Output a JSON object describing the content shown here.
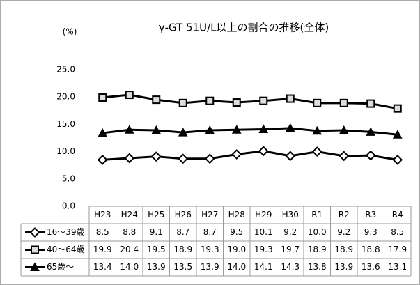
{
  "chart_data": {
    "type": "line",
    "title": "γ-GT 51U/L以上の割合の推移(全体)",
    "y_label": "(%)",
    "categories": [
      "H23",
      "H24",
      "H25",
      "H26",
      "H27",
      "H28",
      "H29",
      "H30",
      "R1",
      "R2",
      "R3",
      "R4"
    ],
    "series": [
      {
        "name": "16～39歳",
        "color": "#000000",
        "marker": "diamond",
        "values": [
          8.5,
          8.8,
          9.1,
          8.7,
          8.7,
          9.5,
          10.1,
          9.2,
          10.0,
          9.2,
          9.3,
          8.5
        ],
        "value_labels": [
          "8.5",
          "8.8",
          "9.1",
          "8.7",
          "8.7",
          "9.5",
          "10.1",
          "9.2",
          "10.0",
          "9.2",
          "9.3",
          "8.5"
        ]
      },
      {
        "name": "40～64歳",
        "color": "#000000",
        "marker": "square",
        "values": [
          19.9,
          20.4,
          19.5,
          18.9,
          19.3,
          19.0,
          19.3,
          19.7,
          18.9,
          18.9,
          18.8,
          17.9
        ],
        "value_labels": [
          "19.9",
          "20.4",
          "19.5",
          "18.9",
          "19.3",
          "19.0",
          "19.3",
          "19.7",
          "18.9",
          "18.9",
          "18.8",
          "17.9"
        ]
      },
      {
        "name": "65歳～",
        "color": "#000000",
        "marker": "triangle",
        "values": [
          13.4,
          14.0,
          13.9,
          13.5,
          13.9,
          14.0,
          14.1,
          14.3,
          13.8,
          13.9,
          13.6,
          13.1
        ],
        "value_labels": [
          "13.4",
          "14.0",
          "13.9",
          "13.5",
          "13.9",
          "14.0",
          "14.1",
          "14.3",
          "13.8",
          "13.9",
          "13.6",
          "13.1"
        ]
      }
    ],
    "ylim": [
      0,
      25
    ],
    "yticks": [
      {
        "value": 0,
        "label": "0.0"
      },
      {
        "value": 5,
        "label": "5.0"
      },
      {
        "value": 10,
        "label": "10.0"
      },
      {
        "value": 15,
        "label": "15.0"
      },
      {
        "value": 20,
        "label": "20.0"
      },
      {
        "value": 25,
        "label": "25.0"
      }
    ],
    "grid": false
  }
}
